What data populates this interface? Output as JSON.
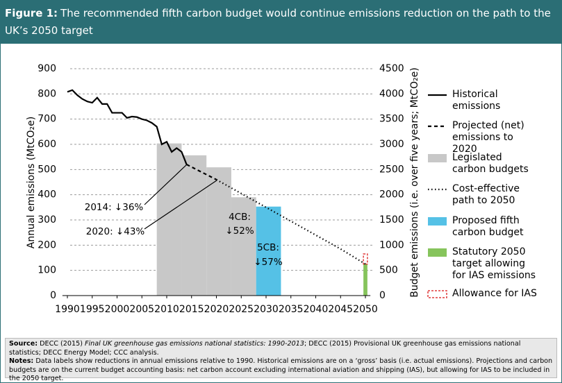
{
  "header": {
    "label": "Figure 1:",
    "title": "The recommended fifth carbon budget would continue emissions reduction on the path to the UK’s 2050 target"
  },
  "chart_data": {
    "type": "combo",
    "y_label": "Annual emissions (MtCO₂e)",
    "y2_label": "Budget emissions (i.e. over five years; MtCO₂e)",
    "xlim": [
      1989,
      2051
    ],
    "xticks": [
      1990,
      1995,
      2000,
      2005,
      2010,
      2015,
      2020,
      2025,
      2030,
      2035,
      2040,
      2045,
      2050
    ],
    "ylim": [
      0,
      900
    ],
    "yticks": [
      0,
      100,
      200,
      300,
      400,
      500,
      600,
      700,
      800,
      900
    ],
    "y2lim": [
      0,
      4500
    ],
    "y2ticks": [
      0,
      500,
      1000,
      1500,
      2000,
      2500,
      3000,
      3500,
      4000,
      4500
    ],
    "grid": true,
    "legend": "right",
    "series": [
      {
        "name": "Historical emissions",
        "type": "line",
        "style": "solid",
        "color": "#000000",
        "x": [
          1990,
          1991,
          1992,
          1993,
          1994,
          1995,
          1996,
          1997,
          1998,
          1999,
          2000,
          2001,
          2002,
          2003,
          2004,
          2005,
          2006,
          2007,
          2008,
          2009,
          2010,
          2011,
          2012,
          2013,
          2014
        ],
        "values": [
          808,
          815,
          795,
          780,
          770,
          765,
          785,
          760,
          760,
          725,
          725,
          725,
          705,
          710,
          708,
          700,
          695,
          685,
          670,
          600,
          610,
          570,
          585,
          570,
          520
        ]
      },
      {
        "name": "Projected (net) emissions to 2020",
        "type": "line",
        "style": "dashed",
        "color": "#000000",
        "x": [
          2014,
          2020
        ],
        "values": [
          520,
          460
        ]
      },
      {
        "name": "Legislated carbon budgets",
        "type": "bar",
        "axis": "y2",
        "color": "#c8c8c8",
        "x_start": [
          2008,
          2013,
          2018,
          2023
        ],
        "x_end": [
          2013,
          2018,
          2023,
          2028
        ],
        "values": [
          3018,
          2782,
          2544,
          1950
        ]
      },
      {
        "name": "Cost-effective path to 2050",
        "type": "line",
        "style": "dotted",
        "color": "#000000",
        "x": [
          2020,
          2025,
          2030,
          2035,
          2040,
          2045,
          2050
        ],
        "values": [
          460,
          405,
          350,
          295,
          240,
          185,
          125
        ]
      },
      {
        "name": "Proposed fifth carbon budget",
        "type": "bar",
        "axis": "y2",
        "color": "#55c1e6",
        "x_start": [
          2028
        ],
        "x_end": [
          2033
        ],
        "values": [
          1765
        ]
      },
      {
        "name": "Statutory 2050 target allowing for IAS emissions",
        "type": "bar",
        "color": "#86c45c",
        "x_start": [
          2049.6
        ],
        "x_end": [
          2050.4
        ],
        "values": [
          125
        ]
      },
      {
        "name": "Allowance for IAS",
        "type": "bar",
        "style": "dashed-outline",
        "stacked": true,
        "color": "#e03a3a",
        "x_start": [
          2049.6
        ],
        "x_end": [
          2050.4
        ],
        "values": [
          40
        ]
      }
    ],
    "annotations": [
      "2014: ↓36%",
      "2020: ↓43%",
      "4CB:",
      "↓52%",
      "5CB:",
      "↓57%"
    ]
  },
  "footer": {
    "source_label": "Source:",
    "source": [
      "DECC (2015)",
      "Final UK greenhouse gas emissions national statistics: 1990-2013",
      "; DECC (2015) Provisional UK greenhouse gas emissions national statistics; DECC Energy Model; CCC analysis."
    ],
    "notes_label": "Notes:",
    "notes": "Data labels show reductions in annual emissions relative to 1990. Historical emissions are on a ‘gross’ basis (i.e. actual emissions). Projections and carbon budgets are on the current budget accounting basis: net carbon account excluding international aviation and shipping (IAS), but allowing for IAS to be included in the 2050 target."
  }
}
